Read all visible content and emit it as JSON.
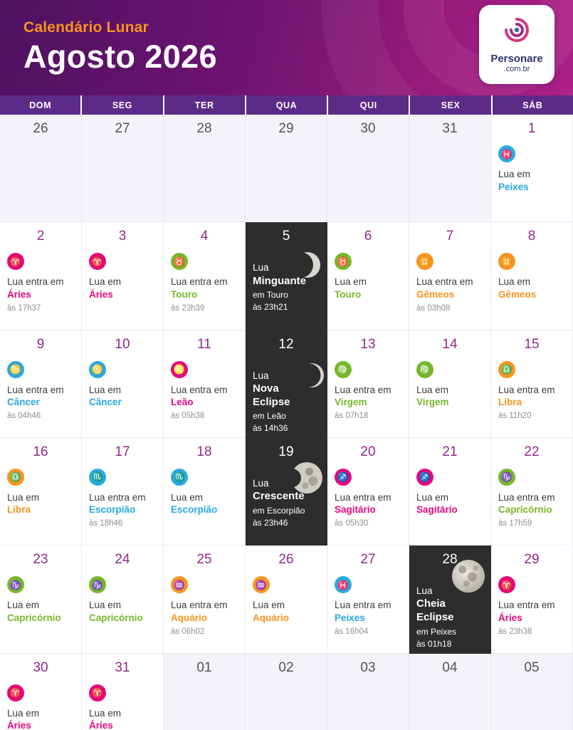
{
  "header": {
    "subtitle": "Calendário Lunar",
    "title": "Agosto 2026",
    "logo": {
      "name": "Personare",
      "domain": ".com.br"
    }
  },
  "weekdays": [
    "DOM",
    "SEG",
    "TER",
    "QUA",
    "QUI",
    "SEX",
    "SÁB"
  ],
  "colors": {
    "fire": "#e5077e",
    "earth": "#76b72a",
    "air": "#f7941e",
    "water": "#29a9e1",
    "header_purple": "#5c2b87",
    "day_number": "#93278f",
    "dark_cell": "#2d2d2d"
  },
  "signs": {
    "aries": {
      "label": "Áries",
      "glyph": "♈",
      "element": "fire"
    },
    "touro": {
      "label": "Touro",
      "glyph": "♉",
      "element": "earth"
    },
    "gemeos": {
      "label": "Gêmeos",
      "glyph": "♊",
      "element": "air"
    },
    "cancer": {
      "label": "Câncer",
      "glyph": "♋",
      "element": "water"
    },
    "leao": {
      "label": "Leão",
      "glyph": "♌",
      "element": "fire"
    },
    "virgem": {
      "label": "Virgem",
      "glyph": "♍",
      "element": "earth"
    },
    "libra": {
      "label": "Libra",
      "glyph": "♎",
      "element": "air"
    },
    "escorpiao": {
      "label": "Escorpião",
      "glyph": "♏",
      "element": "water"
    },
    "sagitario": {
      "label": "Sagitário",
      "glyph": "♐",
      "element": "fire"
    },
    "capricornio": {
      "label": "Capricórnio",
      "glyph": "♑",
      "element": "earth"
    },
    "aquario": {
      "label": "Aquário",
      "glyph": "♒",
      "element": "air"
    },
    "peixes": {
      "label": "Peixes",
      "glyph": "♓",
      "element": "water"
    }
  },
  "cells": [
    {
      "day": "26",
      "kind": "adjacent"
    },
    {
      "day": "27",
      "kind": "adjacent"
    },
    {
      "day": "28",
      "kind": "adjacent"
    },
    {
      "day": "29",
      "kind": "adjacent"
    },
    {
      "day": "30",
      "kind": "adjacent"
    },
    {
      "day": "31",
      "kind": "adjacent"
    },
    {
      "day": "1",
      "kind": "sign",
      "sign": "peixes",
      "prefix": "Lua em"
    },
    {
      "day": "2",
      "kind": "sign",
      "sign": "aries",
      "prefix": "Lua entra em",
      "time": "às 17h37"
    },
    {
      "day": "3",
      "kind": "sign",
      "sign": "aries",
      "prefix": "Lua em"
    },
    {
      "day": "4",
      "kind": "sign",
      "sign": "touro",
      "prefix": "Lua entra em",
      "time": "às 23h39"
    },
    {
      "day": "5",
      "kind": "moon",
      "moon": "minguante",
      "lua": "Lua",
      "phase": "Minguante",
      "detail": "em Touro",
      "time": "às 23h21"
    },
    {
      "day": "6",
      "kind": "sign",
      "sign": "touro",
      "prefix": "Lua em"
    },
    {
      "day": "7",
      "kind": "sign",
      "sign": "gemeos",
      "prefix": "Lua entra em",
      "time": "às 03h08"
    },
    {
      "day": "8",
      "kind": "sign",
      "sign": "gemeos",
      "prefix": "Lua em"
    },
    {
      "day": "9",
      "kind": "sign",
      "sign": "cancer",
      "prefix": "Lua entra em",
      "time": "às 04h46"
    },
    {
      "day": "10",
      "kind": "sign",
      "sign": "cancer",
      "prefix": "Lua em"
    },
    {
      "day": "11",
      "kind": "sign",
      "sign": "leao",
      "prefix": "Lua entra em",
      "time": "às 05h38"
    },
    {
      "day": "12",
      "kind": "moon",
      "moon": "nova",
      "lua": "Lua",
      "phase": "Nova Eclipse",
      "detail": "em Leão",
      "time": "às 14h36"
    },
    {
      "day": "13",
      "kind": "sign",
      "sign": "virgem",
      "prefix": "Lua entra em",
      "time": "às 07h18"
    },
    {
      "day": "14",
      "kind": "sign",
      "sign": "virgem",
      "prefix": "Lua em"
    },
    {
      "day": "15",
      "kind": "sign",
      "sign": "libra",
      "prefix": "Lua entra em",
      "time": "às 11h20"
    },
    {
      "day": "16",
      "kind": "sign",
      "sign": "libra",
      "prefix": "Lua em"
    },
    {
      "day": "17",
      "kind": "sign",
      "sign": "escorpiao",
      "prefix": "Lua entra em",
      "time": "às 18h46"
    },
    {
      "day": "18",
      "kind": "sign",
      "sign": "escorpiao",
      "prefix": "Lua em"
    },
    {
      "day": "19",
      "kind": "moon",
      "moon": "crescente",
      "lua": "Lua",
      "phase": "Crescente",
      "detail": "em Escorpião",
      "time": "às 23h46"
    },
    {
      "day": "20",
      "kind": "sign",
      "sign": "sagitario",
      "prefix": "Lua entra em",
      "time": "às 05h30"
    },
    {
      "day": "21",
      "kind": "sign",
      "sign": "sagitario",
      "prefix": "Lua em"
    },
    {
      "day": "22",
      "kind": "sign",
      "sign": "capricornio",
      "prefix": "Lua entra em",
      "time": "às 17h59"
    },
    {
      "day": "23",
      "kind": "sign",
      "sign": "capricornio",
      "prefix": "Lua em"
    },
    {
      "day": "24",
      "kind": "sign",
      "sign": "capricornio",
      "prefix": "Lua em"
    },
    {
      "day": "25",
      "kind": "sign",
      "sign": "aquario",
      "prefix": "Lua entra em",
      "time": "às 06h02"
    },
    {
      "day": "26",
      "kind": "sign",
      "sign": "aquario",
      "prefix": "Lua em"
    },
    {
      "day": "27",
      "kind": "sign",
      "sign": "peixes",
      "prefix": "Lua entra em",
      "time": "às 16h04"
    },
    {
      "day": "28",
      "kind": "moon",
      "moon": "cheia",
      "lua": "Lua",
      "phase": "Cheia Eclipse",
      "detail": "em Peixes",
      "time": "às 01h18"
    },
    {
      "day": "29",
      "kind": "sign",
      "sign": "aries",
      "prefix": "Lua entra em",
      "time": "às 23h38"
    },
    {
      "day": "30",
      "kind": "sign",
      "sign": "aries",
      "prefix": "Lua em"
    },
    {
      "day": "31",
      "kind": "sign",
      "sign": "aries",
      "prefix": "Lua em"
    },
    {
      "day": "01",
      "kind": "adjacent"
    },
    {
      "day": "02",
      "kind": "adjacent"
    },
    {
      "day": "03",
      "kind": "adjacent"
    },
    {
      "day": "04",
      "kind": "adjacent"
    },
    {
      "day": "05",
      "kind": "adjacent"
    }
  ]
}
